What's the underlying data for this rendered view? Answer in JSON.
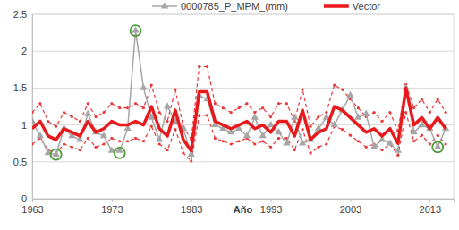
{
  "chart_data": {
    "type": "line",
    "x_label": "Año",
    "x": [
      1963,
      1964,
      1965,
      1966,
      1967,
      1968,
      1969,
      1970,
      1971,
      1972,
      1973,
      1974,
      1975,
      1976,
      1977,
      1978,
      1979,
      1980,
      1981,
      1982,
      1983,
      1984,
      1985,
      1986,
      1987,
      1988,
      1989,
      1990,
      1991,
      1992,
      1993,
      1994,
      1995,
      1996,
      1997,
      1998,
      1999,
      2000,
      2001,
      2002,
      2003,
      2004,
      2005,
      2006,
      2007,
      2008,
      2009,
      2010,
      2011,
      2012,
      2013,
      2014,
      2015
    ],
    "xlim": [
      1963,
      2016
    ],
    "xticks": [
      1963,
      1973,
      1983,
      1993,
      2003,
      2013
    ],
    "ylim": [
      0,
      2.5
    ],
    "yticks": [
      0,
      0.5,
      1,
      1.5,
      2,
      2.5
    ],
    "grid": true,
    "legend": "top",
    "series": [
      {
        "color": "#e8383a",
        "line_style": "dashed",
        "marker": "circle",
        "values": [
          1.17,
          1.29,
          1.05,
          0.98,
          1.17,
          1.11,
          1.05,
          1.29,
          1.11,
          1.17,
          1.29,
          1.23,
          1.23,
          1.29,
          1.23,
          1.54,
          1.17,
          1.05,
          1.48,
          0.98,
          0.8,
          1.79,
          1.79,
          1.29,
          1.23,
          1.17,
          1.23,
          1.29,
          1.17,
          1.23,
          1.11,
          1.29,
          1.29,
          1.05,
          1.48,
          0.98,
          1.11,
          1.17,
          1.54,
          1.48,
          1.35,
          1.23,
          1.11,
          1.17,
          1.05,
          1.17,
          0.92,
          1.55,
          1.23,
          1.35,
          1.17,
          1.35,
          1.17
        ]
      },
      {
        "color": "#e8383a",
        "line_style": "dashed",
        "marker": "circle",
        "values": [
          0.74,
          0.82,
          0.66,
          0.62,
          0.74,
          0.7,
          0.66,
          0.82,
          0.7,
          0.74,
          0.82,
          0.78,
          0.78,
          0.82,
          0.78,
          0.98,
          0.74,
          0.66,
          0.94,
          0.62,
          0.51,
          1.13,
          1.13,
          0.82,
          0.78,
          0.74,
          0.78,
          0.82,
          0.74,
          0.78,
          0.7,
          0.82,
          0.82,
          0.66,
          0.94,
          0.62,
          0.7,
          0.74,
          0.98,
          0.94,
          0.86,
          0.78,
          0.7,
          0.74,
          0.66,
          0.74,
          0.59,
          1.17,
          0.78,
          0.86,
          0.74,
          0.86,
          0.74
        ]
      },
      {
        "name": "0000785_P_MPM_(mm)",
        "color": "#a6a6a6",
        "line_style": "solid",
        "marker": "triangle",
        "values": [
          1.05,
          0.85,
          0.62,
          0.6,
          0.95,
          0.85,
          0.8,
          1.15,
          0.9,
          0.85,
          0.65,
          0.65,
          0.95,
          2.28,
          1.5,
          1.1,
          0.8,
          1.25,
          1.05,
          0.95,
          0.6,
          1.4,
          1.35,
          1.0,
          0.95,
          0.9,
          0.95,
          0.85,
          1.1,
          0.85,
          1.0,
          0.9,
          0.75,
          1.1,
          0.75,
          0.8,
          0.95,
          1.1,
          1.0,
          1.2,
          1.4,
          1.1,
          1.15,
          0.7,
          0.8,
          0.75,
          0.65,
          1.5,
          0.9,
          1.0,
          0.95,
          0.7,
          0.95
        ]
      },
      {
        "name": "Vector",
        "color": "#e8191c",
        "line_style": "solid",
        "marker": "none",
        "values": [
          0.95,
          1.05,
          0.85,
          0.8,
          0.95,
          0.9,
          0.85,
          1.05,
          0.9,
          0.95,
          1.05,
          1.0,
          1.0,
          1.05,
          1.0,
          1.25,
          0.95,
          0.85,
          1.2,
          0.8,
          0.65,
          1.45,
          1.45,
          1.05,
          1.0,
          0.95,
          1.0,
          1.05,
          0.95,
          1.0,
          0.9,
          1.05,
          1.05,
          0.85,
          1.2,
          0.8,
          0.9,
          0.95,
          1.25,
          1.2,
          1.1,
          1.0,
          0.9,
          0.95,
          0.85,
          0.95,
          0.75,
          1.5,
          1.0,
          1.1,
          0.95,
          1.1,
          0.95
        ]
      },
      {
        "type": "scatter",
        "color": "#4e9a3a",
        "marker": "circle",
        "values": [
          null,
          null,
          null,
          0.6,
          null,
          null,
          null,
          null,
          null,
          null,
          null,
          0.62,
          null,
          2.28,
          null,
          null,
          null,
          null,
          null,
          null,
          null,
          null,
          null,
          null,
          null,
          null,
          null,
          null,
          null,
          null,
          null,
          null,
          null,
          null,
          null,
          null,
          null,
          null,
          null,
          null,
          null,
          null,
          null,
          null,
          null,
          null,
          null,
          null,
          null,
          null,
          null,
          0.7,
          null
        ]
      }
    ]
  }
}
